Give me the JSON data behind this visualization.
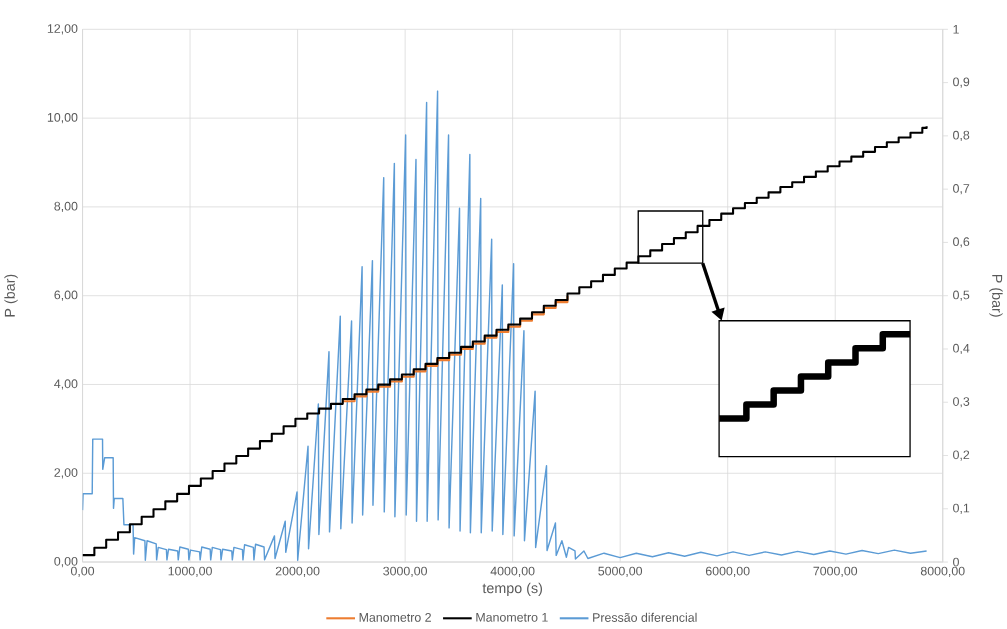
{
  "chart_data": {
    "type": "line",
    "xlabel": "tempo (s)",
    "ylabel": "P (bar)",
    "y2label": "P (bar)",
    "xlim": [
      0,
      8000
    ],
    "ylim": [
      0,
      12
    ],
    "y2lim": [
      0,
      1
    ],
    "xticks": [
      {
        "value": 0,
        "label": "0,00"
      },
      {
        "value": 1000,
        "label": "1000,00"
      },
      {
        "value": 2000,
        "label": "2000,00"
      },
      {
        "value": 3000,
        "label": "3000,00"
      },
      {
        "value": 4000,
        "label": "4000,00"
      },
      {
        "value": 5000,
        "label": "5000,00"
      },
      {
        "value": 6000,
        "label": "6000,00"
      },
      {
        "value": 7000,
        "label": "7000,00"
      },
      {
        "value": 8000,
        "label": "8000,00"
      }
    ],
    "yticks": [
      {
        "value": 0,
        "label": "0,00"
      },
      {
        "value": 2,
        "label": "2,00"
      },
      {
        "value": 4,
        "label": "4,00"
      },
      {
        "value": 6,
        "label": "6,00"
      },
      {
        "value": 8,
        "label": "8,00"
      },
      {
        "value": 10,
        "label": "10,00"
      },
      {
        "value": 12,
        "label": "12,00"
      }
    ],
    "y2ticks": [
      0,
      {
        "value": 0.1,
        "label": "0,1"
      },
      {
        "value": 0.2,
        "label": "0,2"
      },
      {
        "value": 0.3,
        "label": "0,3"
      },
      {
        "value": 0.4,
        "label": "0,4"
      },
      {
        "value": 0.5,
        "label": "0,5"
      },
      {
        "value": 0.6,
        "label": "0,6"
      },
      {
        "value": 0.7,
        "label": "0,7"
      },
      {
        "value": 0.8,
        "label": "0,8"
      },
      {
        "value": 0.9,
        "label": "0,9"
      },
      1
    ],
    "grid": true,
    "legend": "bottom",
    "x": [
      0,
      110,
      220,
      330,
      440,
      550,
      660,
      770,
      880,
      990,
      1100,
      1210,
      1320,
      1430,
      1540,
      1650,
      1760,
      1870,
      1980,
      2090,
      2200,
      2310,
      2420,
      2530,
      2640,
      2750,
      2860,
      2970,
      3080,
      3190,
      3300,
      3410,
      3520,
      3630,
      3740,
      3850,
      3960,
      4070,
      4180,
      4290,
      4400,
      4510,
      4620,
      4730,
      4840,
      4950,
      5060,
      5170,
      5280,
      5390,
      5500,
      5610,
      5720,
      5830,
      5940,
      6050,
      6160,
      6270,
      6380,
      6490,
      6600,
      6710,
      6820,
      6930,
      7040,
      7150,
      7260,
      7370,
      7480,
      7590,
      7700,
      7810,
      7850
    ],
    "series": [
      {
        "name": "Manometro 2",
        "type": "step",
        "axis": "y2",
        "color": "#ed7d31",
        "values": [
          null,
          null,
          null,
          null,
          null,
          null,
          null,
          null,
          null,
          null,
          null,
          null,
          null,
          null,
          null,
          null,
          null,
          null,
          null,
          null,
          null,
          null,
          0.302,
          0.311,
          0.32,
          0.329,
          0.339,
          0.348,
          0.358,
          0.368,
          0.379,
          0.389,
          0.4,
          0.41,
          0.421,
          0.432,
          0.442,
          0.453,
          0.465,
          0.477,
          0.488,
          0.5,
          null,
          null,
          null,
          null,
          null,
          null,
          null,
          null,
          null,
          null,
          null,
          null,
          null,
          null,
          null,
          null,
          null,
          null,
          null,
          null,
          null,
          null,
          null,
          null,
          null,
          null,
          null,
          null,
          null,
          null,
          null
        ]
      },
      {
        "name": "Manometro 1",
        "type": "step",
        "axis": "y2",
        "color": "#000000",
        "values": [
          0.013,
          0.027,
          0.042,
          0.056,
          0.071,
          0.085,
          0.099,
          0.114,
          0.128,
          0.143,
          0.157,
          0.171,
          0.185,
          0.199,
          0.213,
          0.227,
          0.241,
          0.255,
          0.269,
          0.279,
          0.288,
          0.297,
          0.306,
          0.315,
          0.324,
          0.333,
          0.343,
          0.352,
          0.362,
          0.372,
          0.383,
          0.393,
          0.404,
          0.414,
          0.425,
          0.436,
          0.446,
          0.457,
          0.469,
          0.481,
          0.492,
          0.504,
          0.516,
          0.527,
          0.539,
          0.551,
          0.562,
          0.574,
          0.585,
          0.597,
          0.608,
          0.619,
          0.631,
          0.642,
          0.654,
          0.664,
          0.674,
          0.684,
          0.694,
          0.704,
          0.713,
          0.723,
          0.733,
          0.743,
          0.752,
          0.761,
          0.77,
          0.779,
          0.788,
          0.797,
          0.806,
          0.815,
          0.818
        ]
      },
      {
        "name": "Pressão diferencial",
        "color": "#5b9bd5",
        "x": [
          0,
          5,
          90,
          95,
          186,
          188,
          206,
          285,
          288,
          295,
          375,
          385,
          470,
          475,
          485,
          580,
          584,
          600,
          685,
          689,
          704,
          780,
          785,
          800,
          885,
          890,
          905,
          984,
          989,
          1004,
          1089,
          1094,
          1109,
          1187,
          1192,
          1207,
          1283,
          1288,
          1303,
          1388,
          1393,
          1408,
          1487,
          1492,
          1507,
          1589,
          1594,
          1609,
          1688,
          1693,
          1785,
          1790,
          1885,
          1890,
          1995,
          2001,
          2097,
          2102,
          2193,
          2198,
          2292,
          2297,
          2397,
          2402,
          2502,
          2507,
          2600,
          2605,
          2696,
          2701,
          2801,
          2806,
          2900,
          2905,
          3005,
          3010,
          3101,
          3106,
          3200,
          3205,
          3302,
          3307,
          3404,
          3409,
          3506,
          3511,
          3602,
          3607,
          3703,
          3708,
          3805,
          3810,
          3904,
          3909,
          4009,
          4014,
          4105,
          4110,
          4209,
          4214,
          4315,
          4320,
          4398,
          4405,
          4458,
          4500,
          4520,
          4580,
          4584,
          4663,
          4700,
          4850,
          5000,
          5150,
          5300,
          5450,
          5600,
          5750,
          5900,
          6050,
          6200,
          6350,
          6500,
          6650,
          6800,
          6950,
          7100,
          7250,
          7400,
          7550,
          7700,
          7850
        ],
        "values": [
          1.17,
          1.54,
          1.54,
          2.77,
          2.77,
          2.09,
          2.35,
          2.35,
          1.21,
          1.43,
          1.43,
          0.84,
          0.84,
          0.18,
          0.55,
          0.48,
          0.04,
          0.48,
          0.41,
          0.05,
          0.33,
          0.28,
          0.05,
          0.29,
          0.25,
          0.05,
          0.34,
          0.29,
          0.05,
          0.27,
          0.23,
          0.05,
          0.34,
          0.29,
          0.05,
          0.33,
          0.28,
          0.05,
          0.29,
          0.25,
          0.05,
          0.33,
          0.28,
          0.05,
          0.39,
          0.33,
          0.05,
          0.4,
          0.34,
          0.05,
          0.59,
          0.08,
          0.92,
          0.22,
          1.58,
          0.04,
          2.61,
          0.3,
          3.56,
          0.62,
          4.74,
          0.68,
          5.54,
          0.75,
          5.43,
          0.88,
          6.65,
          1.06,
          6.79,
          1.28,
          8.66,
          1.13,
          8.98,
          1.02,
          9.62,
          1.06,
          9.07,
          0.92,
          10.35,
          0.92,
          10.61,
          0.95,
          9.62,
          0.77,
          7.97,
          0.7,
          9.18,
          0.66,
          8.19,
          0.66,
          7.27,
          0.7,
          6.24,
          0.62,
          6.72,
          0.59,
          5.21,
          0.48,
          3.85,
          0.33,
          2.17,
          0.26,
          0.88,
          0.15,
          0.48,
          0.11,
          0.33,
          0.25,
          0.07,
          0.25,
          0.08,
          0.2,
          0.1,
          0.2,
          0.12,
          0.21,
          0.13,
          0.22,
          0.14,
          0.23,
          0.15,
          0.23,
          0.16,
          0.24,
          0.17,
          0.25,
          0.18,
          0.26,
          0.19,
          0.27,
          0.2,
          0.25
        ]
      }
    ]
  }
}
